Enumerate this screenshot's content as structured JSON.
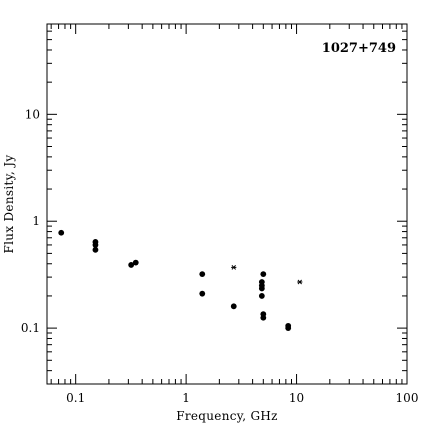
{
  "chart_data": {
    "type": "scatter",
    "title": "",
    "annotation": "1027+749",
    "xlabel": "Frequency, GHz",
    "ylabel": "Flux Density, Jy",
    "xscale": "log",
    "yscale": "log",
    "xlim": [
      0.055,
      100
    ],
    "ylim": [
      0.03,
      70
    ],
    "grid": false,
    "xticks": [
      {
        "value": 0.1,
        "label": "0.1"
      },
      {
        "value": 1,
        "label": "1"
      },
      {
        "value": 10,
        "label": "10"
      },
      {
        "value": 100,
        "label": "100"
      }
    ],
    "yticks": [
      {
        "value": 0.1,
        "label": "0.1"
      },
      {
        "value": 1,
        "label": "1"
      },
      {
        "value": 10,
        "label": "10"
      }
    ],
    "series": [
      {
        "marker": "filled-circle",
        "points": [
          {
            "x": 0.074,
            "y": 0.78
          },
          {
            "x": 0.151,
            "y": 0.64
          },
          {
            "x": 0.151,
            "y": 0.6
          },
          {
            "x": 0.151,
            "y": 0.54
          },
          {
            "x": 0.318,
            "y": 0.39
          },
          {
            "x": 0.35,
            "y": 0.41
          },
          {
            "x": 1.4,
            "y": 0.32
          },
          {
            "x": 1.4,
            "y": 0.21
          },
          {
            "x": 2.7,
            "y": 0.16
          },
          {
            "x": 5.0,
            "y": 0.32
          },
          {
            "x": 4.85,
            "y": 0.27
          },
          {
            "x": 4.85,
            "y": 0.25
          },
          {
            "x": 4.85,
            "y": 0.235
          },
          {
            "x": 4.85,
            "y": 0.2
          },
          {
            "x": 5.0,
            "y": 0.135
          },
          {
            "x": 5.0,
            "y": 0.125
          },
          {
            "x": 8.4,
            "y": 0.105
          },
          {
            "x": 8.4,
            "y": 0.1
          }
        ]
      },
      {
        "marker": "asterisk",
        "points": [
          {
            "x": 2.7,
            "y": 0.37
          },
          {
            "x": 10.7,
            "y": 0.27
          }
        ]
      }
    ]
  }
}
